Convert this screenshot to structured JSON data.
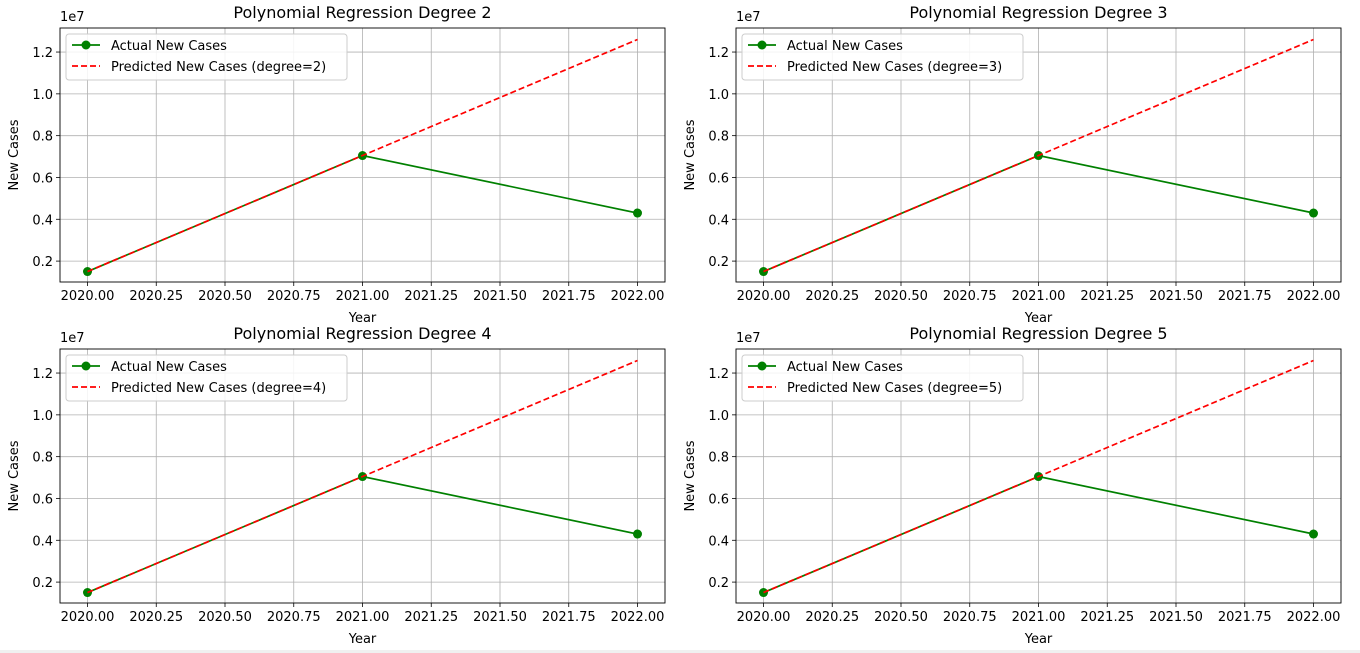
{
  "figure": {
    "subplots": [
      {
        "title": "Polynomial Regression Degree 2",
        "xlabel": "Year",
        "ylabel": "New Cases",
        "offset_label": "1e7",
        "legend": [
          "Actual New Cases",
          "Predicted New Cases (degree=2)"
        ]
      },
      {
        "title": "Polynomial Regression Degree 3",
        "xlabel": "Year",
        "ylabel": "New Cases",
        "offset_label": "1e7",
        "legend": [
          "Actual New Cases",
          "Predicted New Cases (degree=3)"
        ]
      },
      {
        "title": "Polynomial Regression Degree 4",
        "xlabel": "Year",
        "ylabel": "New Cases",
        "offset_label": "1e7",
        "legend": [
          "Actual New Cases",
          "Predicted New Cases (degree=4)"
        ]
      },
      {
        "title": "Polynomial Regression Degree 5",
        "xlabel": "Year",
        "ylabel": "New Cases",
        "offset_label": "1e7",
        "legend": [
          "Actual New Cases",
          "Predicted New Cases (degree=5)"
        ]
      }
    ]
  },
  "colors": {
    "actual": "#008000",
    "predicted": "#ff0000",
    "grid": "#b0b0b0",
    "axis": "#000000"
  },
  "chart_data": [
    {
      "type": "line",
      "title": "Polynomial Regression Degree 2",
      "xlabel": "Year",
      "ylabel": "New Cases",
      "x": [
        2020,
        2021,
        2022
      ],
      "series": [
        {
          "name": "Actual New Cases",
          "values": [
            1500000,
            7050000,
            4300000
          ],
          "style": "solid-markers"
        },
        {
          "name": "Predicted New Cases (degree=2)",
          "values": [
            1500000,
            7050000,
            12600000
          ],
          "style": "dashed"
        }
      ],
      "xlim": [
        2019.9,
        2022.1
      ],
      "ylim": [
        1000000,
        13150000
      ],
      "xticks": [
        2020.0,
        2020.25,
        2020.5,
        2020.75,
        2021.0,
        2021.25,
        2021.5,
        2021.75,
        2022.0
      ],
      "xtick_labels": [
        "2020.00",
        "2020.25",
        "2020.50",
        "2020.75",
        "2021.00",
        "2021.25",
        "2021.50",
        "2021.75",
        "2022.00"
      ],
      "yticks": [
        2000000,
        4000000,
        6000000,
        8000000,
        10000000,
        12000000
      ],
      "ytick_labels": [
        "0.2",
        "0.4",
        "0.6",
        "0.8",
        "1.0",
        "1.2"
      ],
      "grid": true,
      "legend_position": "upper-left"
    },
    {
      "type": "line",
      "title": "Polynomial Regression Degree 3",
      "xlabel": "Year",
      "ylabel": "New Cases",
      "x": [
        2020,
        2021,
        2022
      ],
      "series": [
        {
          "name": "Actual New Cases",
          "values": [
            1500000,
            7050000,
            4300000
          ],
          "style": "solid-markers"
        },
        {
          "name": "Predicted New Cases (degree=3)",
          "values": [
            1500000,
            7050000,
            12600000
          ],
          "style": "dashed"
        }
      ],
      "xlim": [
        2019.9,
        2022.1
      ],
      "ylim": [
        1000000,
        13150000
      ],
      "xticks": [
        2020.0,
        2020.25,
        2020.5,
        2020.75,
        2021.0,
        2021.25,
        2021.5,
        2021.75,
        2022.0
      ],
      "xtick_labels": [
        "2020.00",
        "2020.25",
        "2020.50",
        "2020.75",
        "2021.00",
        "2021.25",
        "2021.50",
        "2021.75",
        "2022.00"
      ],
      "yticks": [
        2000000,
        4000000,
        6000000,
        8000000,
        10000000,
        12000000
      ],
      "ytick_labels": [
        "0.2",
        "0.4",
        "0.6",
        "0.8",
        "1.0",
        "1.2"
      ],
      "grid": true,
      "legend_position": "upper-left"
    },
    {
      "type": "line",
      "title": "Polynomial Regression Degree 4",
      "xlabel": "Year",
      "ylabel": "New Cases",
      "x": [
        2020,
        2021,
        2022
      ],
      "series": [
        {
          "name": "Actual New Cases",
          "values": [
            1500000,
            7050000,
            4300000
          ],
          "style": "solid-markers"
        },
        {
          "name": "Predicted New Cases (degree=4)",
          "values": [
            1500000,
            7050000,
            12600000
          ],
          "style": "dashed"
        }
      ],
      "xlim": [
        2019.9,
        2022.1
      ],
      "ylim": [
        1000000,
        13150000
      ],
      "xticks": [
        2020.0,
        2020.25,
        2020.5,
        2020.75,
        2021.0,
        2021.25,
        2021.5,
        2021.75,
        2022.0
      ],
      "xtick_labels": [
        "2020.00",
        "2020.25",
        "2020.50",
        "2020.75",
        "2021.00",
        "2021.25",
        "2021.50",
        "2021.75",
        "2022.00"
      ],
      "yticks": [
        2000000,
        4000000,
        6000000,
        8000000,
        10000000,
        12000000
      ],
      "ytick_labels": [
        "0.2",
        "0.4",
        "0.6",
        "0.8",
        "1.0",
        "1.2"
      ],
      "grid": true,
      "legend_position": "upper-left"
    },
    {
      "type": "line",
      "title": "Polynomial Regression Degree 5",
      "xlabel": "Year",
      "ylabel": "New Cases",
      "x": [
        2020,
        2021,
        2022
      ],
      "series": [
        {
          "name": "Actual New Cases",
          "values": [
            1500000,
            7050000,
            4300000
          ],
          "style": "solid-markers"
        },
        {
          "name": "Predicted New Cases (degree=5)",
          "values": [
            1500000,
            7050000,
            12600000
          ],
          "style": "dashed"
        }
      ],
      "xlim": [
        2019.9,
        2022.1
      ],
      "ylim": [
        1000000,
        13150000
      ],
      "xticks": [
        2020.0,
        2020.25,
        2020.5,
        2020.75,
        2021.0,
        2021.25,
        2021.5,
        2021.75,
        2022.0
      ],
      "xtick_labels": [
        "2020.00",
        "2020.25",
        "2020.50",
        "2020.75",
        "2021.00",
        "2021.25",
        "2021.50",
        "2021.75",
        "2022.00"
      ],
      "yticks": [
        2000000,
        4000000,
        6000000,
        8000000,
        10000000,
        12000000
      ],
      "ytick_labels": [
        "0.2",
        "0.4",
        "0.6",
        "0.8",
        "1.0",
        "1.2"
      ],
      "grid": true,
      "legend_position": "upper-left"
    }
  ]
}
